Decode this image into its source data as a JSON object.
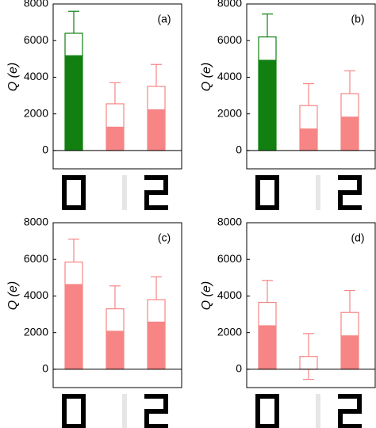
{
  "chart_data": [
    {
      "type": "bar",
      "label": "(a)",
      "ylabel": "Q (e)",
      "categories": [
        "0",
        "1",
        "2"
      ],
      "values": [
        5200,
        1300,
        2250
      ],
      "outline_values": [
        6400,
        2550,
        3500
      ],
      "errors": [
        1200,
        1150,
        1200
      ],
      "colors": [
        "#118011",
        "#f78585",
        "#f78585"
      ],
      "digit_colors": [
        "#000000",
        "#e6e6e6",
        "#000000"
      ],
      "ylim": [
        -1000,
        8000
      ],
      "yticks": [
        0,
        2000,
        4000,
        6000,
        8000
      ]
    },
    {
      "type": "bar",
      "label": "(b)",
      "ylabel": "Q (e)",
      "categories": [
        "0",
        "1",
        "2"
      ],
      "values": [
        4950,
        1200,
        1850
      ],
      "outline_values": [
        6200,
        2450,
        3100
      ],
      "errors": [
        1250,
        1200,
        1250
      ],
      "colors": [
        "#118011",
        "#f78585",
        "#f78585"
      ],
      "digit_colors": [
        "#000000",
        "#e6e6e6",
        "#000000"
      ],
      "ylim": [
        -1000,
        8000
      ],
      "yticks": [
        0,
        2000,
        4000,
        6000,
        8000
      ]
    },
    {
      "type": "bar",
      "label": "(c)",
      "ylabel": "Q (e)",
      "categories": [
        "0",
        "1",
        "2"
      ],
      "values": [
        4650,
        2100,
        2600
      ],
      "outline_values": [
        5850,
        3300,
        3800
      ],
      "errors": [
        1250,
        1250,
        1250
      ],
      "colors": [
        "#f78585",
        "#f78585",
        "#f78585"
      ],
      "digit_colors": [
        "#000000",
        "#e6e6e6",
        "#000000"
      ],
      "ylim": [
        -1000,
        8000
      ],
      "yticks": [
        0,
        2000,
        4000,
        6000,
        8000
      ]
    },
    {
      "type": "bar",
      "label": "(d)",
      "ylabel": "Q (e)",
      "categories": [
        "0",
        "1",
        "2"
      ],
      "values": [
        2400,
        0,
        1850
      ],
      "outline_values": [
        3650,
        700,
        3100
      ],
      "errors": [
        1200,
        1250,
        1200
      ],
      "colors": [
        "#f78585",
        "#f78585",
        "#f78585"
      ],
      "digit_colors": [
        "#000000",
        "#e6e6e6",
        "#000000"
      ],
      "ylim": [
        -1000,
        8000
      ],
      "yticks": [
        0,
        2000,
        4000,
        6000,
        8000
      ]
    }
  ]
}
